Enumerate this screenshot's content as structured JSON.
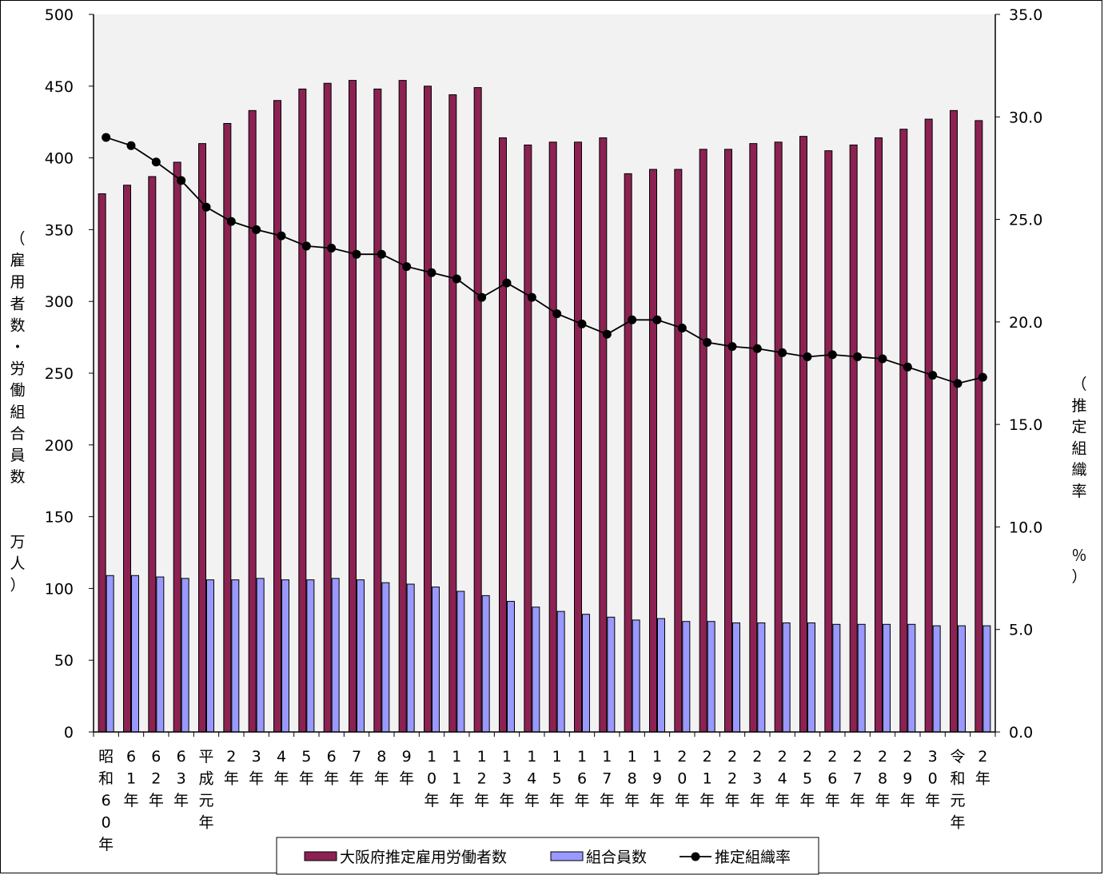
{
  "chart_data": {
    "type": "bar",
    "categories": [
      "昭和60年",
      "61年",
      "62年",
      "63年",
      "平成元年",
      "2年",
      "3年",
      "4年",
      "5年",
      "6年",
      "7年",
      "8年",
      "9年",
      "10年",
      "11年",
      "12年",
      "13年",
      "14年",
      "15年",
      "16年",
      "17年",
      "18年",
      "19年",
      "20年",
      "21年",
      "22年",
      "23年",
      "24年",
      "25年",
      "26年",
      "27年",
      "28年",
      "29年",
      "30年",
      "令和元年",
      "2年"
    ],
    "series": [
      {
        "name": "大阪府推定雇用労働者数",
        "kind": "bar",
        "axis": "left",
        "color": "#8b2252",
        "values": [
          375,
          381,
          387,
          397,
          410,
          424,
          433,
          440,
          448,
          452,
          454,
          448,
          454,
          450,
          444,
          449,
          414,
          409,
          411,
          411,
          414,
          389,
          392,
          392,
          406,
          406,
          410,
          411,
          415,
          405,
          409,
          414,
          420,
          427,
          433,
          426
        ]
      },
      {
        "name": "組合員数",
        "kind": "bar",
        "axis": "left",
        "color": "#9999ff",
        "values": [
          109,
          109,
          108,
          107,
          106,
          106,
          107,
          106,
          106,
          107,
          106,
          104,
          103,
          101,
          98,
          95,
          91,
          87,
          84,
          82,
          80,
          78,
          79,
          77,
          77,
          76,
          76,
          76,
          76,
          75,
          75,
          75,
          75,
          74,
          74,
          74
        ]
      },
      {
        "name": "推定組織率",
        "kind": "line",
        "axis": "right",
        "color": "#000000",
        "values": [
          29.0,
          28.6,
          27.8,
          26.9,
          25.6,
          24.9,
          24.5,
          24.2,
          23.7,
          23.6,
          23.3,
          23.3,
          22.7,
          22.4,
          22.1,
          21.2,
          21.9,
          21.2,
          20.4,
          19.9,
          19.4,
          20.1,
          20.1,
          19.7,
          19.0,
          18.8,
          18.7,
          18.5,
          18.3,
          18.4,
          18.3,
          18.2,
          17.8,
          17.4,
          17.0,
          17.3
        ]
      }
    ],
    "y_left": {
      "label": "（雇用者数・労働組合員数　　万人）",
      "ylim": [
        0,
        500
      ],
      "ticks": [
        "0",
        "50",
        "100",
        "150",
        "200",
        "250",
        "300",
        "350",
        "400",
        "450",
        "500"
      ]
    },
    "y_right": {
      "label": "（推定組織率　　％）",
      "ylim": [
        0,
        35
      ],
      "ticks": [
        "0.0",
        "5.0",
        "10.0",
        "15.0",
        "20.0",
        "25.0",
        "30.0",
        "35.0"
      ]
    },
    "grid": false,
    "legend": "bottom"
  }
}
